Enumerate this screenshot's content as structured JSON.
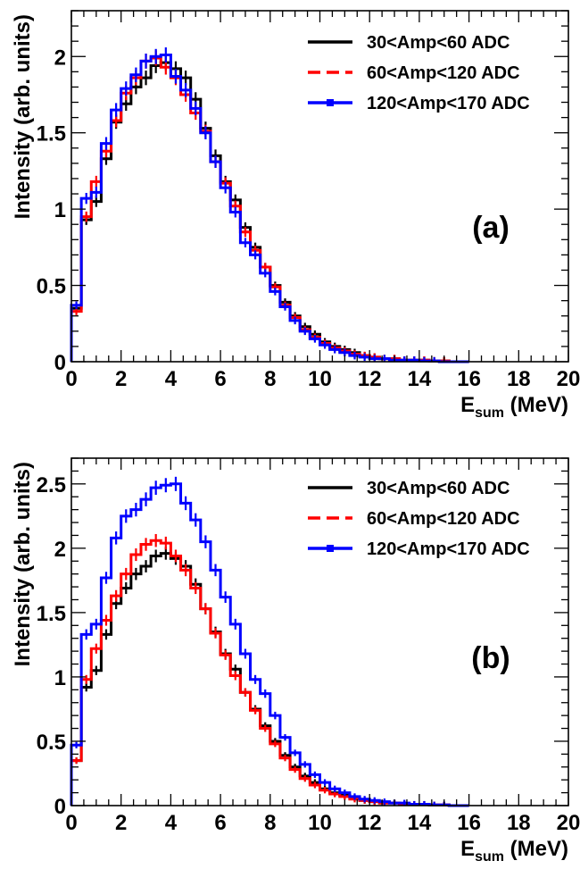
{
  "chart_data": [
    {
      "type": "line",
      "panel_label": "(a)",
      "xlabel_main": "E",
      "xlabel_sub": "sum",
      "xlabel_unit": " (MeV)",
      "ylabel": "Intensity (arb. units)",
      "xlim": [
        0,
        20
      ],
      "ylim": [
        0,
        2.3
      ],
      "x_ticks": [
        0,
        2,
        4,
        6,
        8,
        10,
        12,
        14,
        16,
        18,
        20
      ],
      "y_ticks": [
        0,
        0.5,
        1,
        1.5,
        2
      ],
      "y_tick_labels": [
        "0",
        "0.5",
        "1",
        "1.5",
        "2"
      ],
      "grid": false,
      "legend_position": "top-right",
      "bin_width": 0.4,
      "series": [
        {
          "name": "30<Amp<60 ADC",
          "color": "#000000",
          "style": "solid",
          "values": [
            0.35,
            0.93,
            1.05,
            1.33,
            1.57,
            1.69,
            1.8,
            1.86,
            1.94,
            1.96,
            1.92,
            1.86,
            1.72,
            1.53,
            1.35,
            1.18,
            1.06,
            0.88,
            0.75,
            0.62,
            0.5,
            0.39,
            0.3,
            0.23,
            0.18,
            0.13,
            0.1,
            0.08,
            0.06,
            0.04,
            0.03,
            0.02,
            0.02,
            0.01,
            0.01,
            0.01,
            0.005,
            0.005,
            0.0,
            0.0
          ]
        },
        {
          "name": "60<Amp<120 ADC",
          "color": "#ff0000",
          "style": "dashed",
          "values": [
            0.33,
            0.95,
            1.18,
            1.38,
            1.58,
            1.76,
            1.86,
            1.97,
            1.99,
            1.93,
            1.86,
            1.75,
            1.63,
            1.51,
            1.31,
            1.17,
            1.02,
            0.85,
            0.73,
            0.62,
            0.49,
            0.37,
            0.29,
            0.21,
            0.16,
            0.12,
            0.09,
            0.07,
            0.05,
            0.04,
            0.03,
            0.02,
            0.02,
            0.01,
            0.01,
            0.01,
            0.005,
            0.005,
            0.0,
            0.0
          ]
        },
        {
          "name": "120<Amp<170 ADC",
          "color": "#0000ff",
          "style": "solid-marker",
          "values": [
            0.37,
            1.07,
            1.11,
            1.43,
            1.65,
            1.79,
            1.88,
            1.97,
            2.0,
            2.01,
            1.87,
            1.78,
            1.66,
            1.5,
            1.31,
            1.14,
            0.98,
            0.78,
            0.7,
            0.58,
            0.46,
            0.36,
            0.27,
            0.2,
            0.15,
            0.11,
            0.08,
            0.06,
            0.04,
            0.03,
            0.02,
            0.02,
            0.01,
            0.01,
            0.01,
            0.005,
            0.005,
            0.0,
            0.0,
            0.0
          ]
        }
      ]
    },
    {
      "type": "line",
      "panel_label": "(b)",
      "xlabel_main": "E",
      "xlabel_sub": "sum",
      "xlabel_unit": " (MeV)",
      "ylabel": "Intensity (arb. units)",
      "xlim": [
        0,
        20
      ],
      "ylim": [
        0,
        2.7
      ],
      "x_ticks": [
        0,
        2,
        4,
        6,
        8,
        10,
        12,
        14,
        16,
        18,
        20
      ],
      "y_ticks": [
        0,
        0.5,
        1,
        1.5,
        2,
        2.5
      ],
      "y_tick_labels": [
        "0",
        "0.5",
        "1",
        "1.5",
        "2",
        "2.5"
      ],
      "grid": false,
      "legend_position": "top-right",
      "bin_width": 0.4,
      "series": [
        {
          "name": "30<Amp<60 ADC",
          "color": "#000000",
          "style": "solid",
          "values": [
            0.35,
            0.92,
            1.05,
            1.33,
            1.57,
            1.69,
            1.8,
            1.86,
            1.94,
            1.96,
            1.92,
            1.86,
            1.72,
            1.53,
            1.35,
            1.18,
            1.06,
            0.88,
            0.75,
            0.62,
            0.5,
            0.39,
            0.3,
            0.23,
            0.18,
            0.13,
            0.1,
            0.08,
            0.06,
            0.04,
            0.03,
            0.02,
            0.02,
            0.01,
            0.01,
            0.01,
            0.005,
            0.005,
            0.0,
            0.0
          ]
        },
        {
          "name": "60<Amp<120 ADC",
          "color": "#ff0000",
          "style": "dashed",
          "values": [
            0.35,
            0.98,
            1.22,
            1.44,
            1.63,
            1.8,
            1.95,
            2.03,
            2.06,
            2.04,
            1.94,
            1.83,
            1.69,
            1.53,
            1.34,
            1.17,
            1.01,
            0.88,
            0.74,
            0.6,
            0.48,
            0.37,
            0.28,
            0.21,
            0.16,
            0.12,
            0.09,
            0.07,
            0.05,
            0.04,
            0.03,
            0.02,
            0.02,
            0.01,
            0.01,
            0.01,
            0.005,
            0.005,
            0.0,
            0.0
          ]
        },
        {
          "name": "120<Amp<170 ADC",
          "color": "#0000ff",
          "style": "solid-marker",
          "values": [
            0.47,
            1.33,
            1.41,
            1.77,
            2.08,
            2.25,
            2.3,
            2.38,
            2.47,
            2.49,
            2.5,
            2.35,
            2.22,
            2.05,
            1.83,
            1.62,
            1.41,
            1.18,
            0.98,
            0.87,
            0.7,
            0.53,
            0.41,
            0.32,
            0.24,
            0.18,
            0.13,
            0.1,
            0.07,
            0.05,
            0.04,
            0.03,
            0.02,
            0.02,
            0.01,
            0.01,
            0.005,
            0.005,
            0.0,
            0.0
          ]
        }
      ]
    }
  ]
}
